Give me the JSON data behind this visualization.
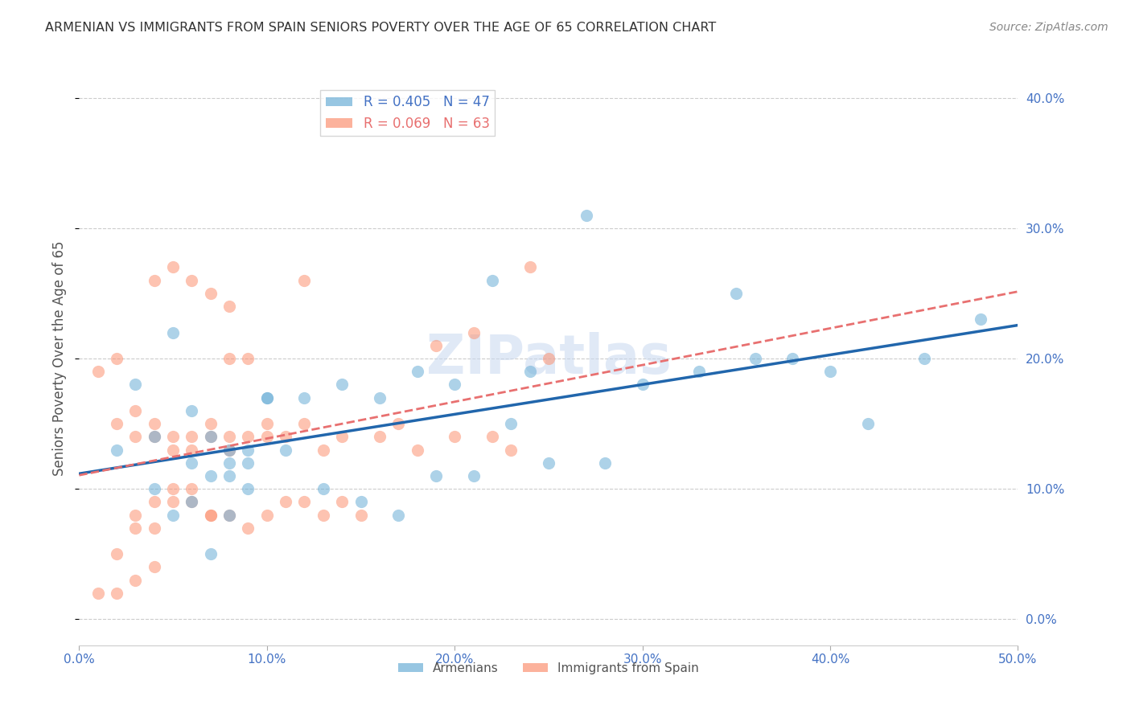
{
  "title": "ARMENIAN VS IMMIGRANTS FROM SPAIN SENIORS POVERTY OVER THE AGE OF 65 CORRELATION CHART",
  "source": "Source: ZipAtlas.com",
  "xlabel": "",
  "ylabel": "Seniors Poverty Over the Age of 65",
  "xlim": [
    0.0,
    0.5
  ],
  "ylim": [
    -0.02,
    0.42
  ],
  "xticks": [
    0.0,
    0.1,
    0.2,
    0.3,
    0.4,
    0.5
  ],
  "yticks": [
    0.0,
    0.1,
    0.2,
    0.3,
    0.4
  ],
  "xticklabels": [
    "0.0%",
    "10.0%",
    "20.0%",
    "30.0%",
    "40.0%",
    "50.0%"
  ],
  "yticklabels": [
    "0.0%",
    "10.0%",
    "20.0%",
    "30.0%",
    "40.0%"
  ],
  "watermark": "ZIPatlas",
  "armenian_color": "#6baed6",
  "spain_color": "#fc9272",
  "armenian_R": 0.405,
  "armenian_N": 47,
  "spain_R": 0.069,
  "spain_N": 63,
  "armenian_x": [
    0.02,
    0.04,
    0.05,
    0.06,
    0.03,
    0.07,
    0.08,
    0.09,
    0.1,
    0.12,
    0.04,
    0.06,
    0.07,
    0.08,
    0.08,
    0.09,
    0.1,
    0.14,
    0.16,
    0.18,
    0.2,
    0.22,
    0.24,
    0.27,
    0.3,
    0.33,
    0.38,
    0.4,
    0.42,
    0.45,
    0.48,
    0.35,
    0.36,
    0.28,
    0.05,
    0.06,
    0.07,
    0.08,
    0.09,
    0.11,
    0.13,
    0.15,
    0.17,
    0.19,
    0.21,
    0.23,
    0.25
  ],
  "armenian_y": [
    0.13,
    0.14,
    0.22,
    0.16,
    0.18,
    0.14,
    0.12,
    0.13,
    0.17,
    0.17,
    0.1,
    0.12,
    0.11,
    0.11,
    0.13,
    0.1,
    0.17,
    0.18,
    0.17,
    0.19,
    0.18,
    0.26,
    0.19,
    0.31,
    0.18,
    0.19,
    0.2,
    0.19,
    0.15,
    0.2,
    0.23,
    0.25,
    0.2,
    0.12,
    0.08,
    0.09,
    0.05,
    0.08,
    0.12,
    0.13,
    0.1,
    0.09,
    0.08,
    0.11,
    0.11,
    0.15,
    0.12
  ],
  "spain_x": [
    0.01,
    0.02,
    0.02,
    0.03,
    0.03,
    0.04,
    0.04,
    0.05,
    0.05,
    0.06,
    0.06,
    0.07,
    0.07,
    0.08,
    0.08,
    0.09,
    0.09,
    0.1,
    0.1,
    0.11,
    0.12,
    0.12,
    0.13,
    0.14,
    0.15,
    0.16,
    0.17,
    0.18,
    0.19,
    0.2,
    0.21,
    0.22,
    0.23,
    0.24,
    0.25,
    0.03,
    0.04,
    0.05,
    0.06,
    0.07,
    0.08,
    0.02,
    0.03,
    0.04,
    0.01,
    0.02,
    0.03,
    0.04,
    0.05,
    0.06,
    0.07,
    0.08,
    0.04,
    0.05,
    0.06,
    0.07,
    0.08,
    0.09,
    0.1,
    0.11,
    0.12,
    0.13,
    0.14
  ],
  "spain_y": [
    0.19,
    0.15,
    0.2,
    0.14,
    0.16,
    0.14,
    0.15,
    0.13,
    0.14,
    0.14,
    0.13,
    0.14,
    0.15,
    0.14,
    0.2,
    0.14,
    0.2,
    0.14,
    0.15,
    0.14,
    0.15,
    0.26,
    0.13,
    0.14,
    0.08,
    0.14,
    0.15,
    0.13,
    0.21,
    0.14,
    0.22,
    0.14,
    0.13,
    0.27,
    0.2,
    0.08,
    0.09,
    0.09,
    0.1,
    0.08,
    0.08,
    0.05,
    0.07,
    0.07,
    0.02,
    0.02,
    0.03,
    0.04,
    0.1,
    0.09,
    0.08,
    0.13,
    0.26,
    0.27,
    0.26,
    0.25,
    0.24,
    0.07,
    0.08,
    0.09,
    0.09,
    0.08,
    0.09
  ],
  "background_color": "#ffffff",
  "grid_color": "#cccccc",
  "title_color": "#333333",
  "axis_label_color": "#555555",
  "tick_label_color": "#4472c4",
  "right_tick_color": "#4472c4"
}
